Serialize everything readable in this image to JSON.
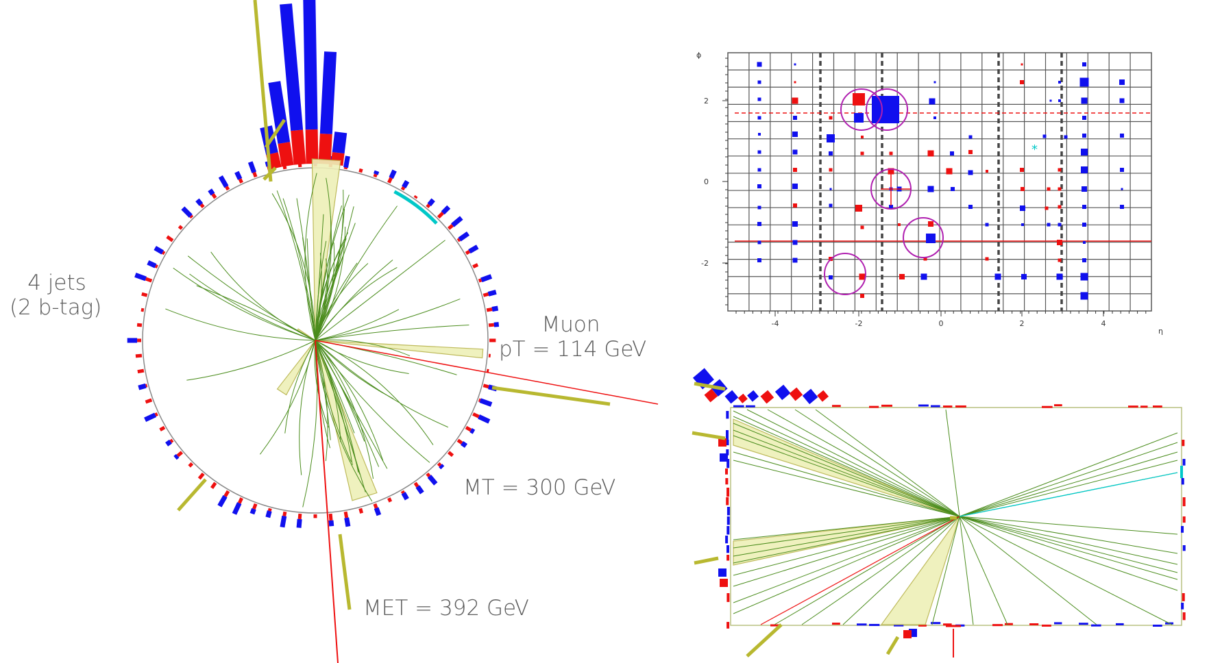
{
  "annotations": {
    "jets_line1": "4 jets",
    "jets_line2": "(2 b-tag)",
    "muon_line1": "Muon",
    "muon_line2": "pT = 114 GeV",
    "mt": "MT = 300 GeV",
    "met": "MET = 392 GeV"
  },
  "lego_plot": {
    "x_axis_label": "η",
    "y_axis_label": "ϕ",
    "x_ticks": [
      "-4",
      "-2",
      "0",
      "2",
      "4"
    ],
    "y_ticks": [
      "2",
      "0",
      "-2"
    ]
  },
  "colors": {
    "hadronic": "#1010ee",
    "electromagnetic": "#ee1010",
    "track": "#4a8c1c",
    "jet_cone": "#eef0b8",
    "jet_cone_edge": "#b7b34a",
    "muon": "#ee1010",
    "met": "#ee1010",
    "cyan_track": "#00c8c8",
    "circle_marker": "#b020b0",
    "grid": "#555555"
  }
}
